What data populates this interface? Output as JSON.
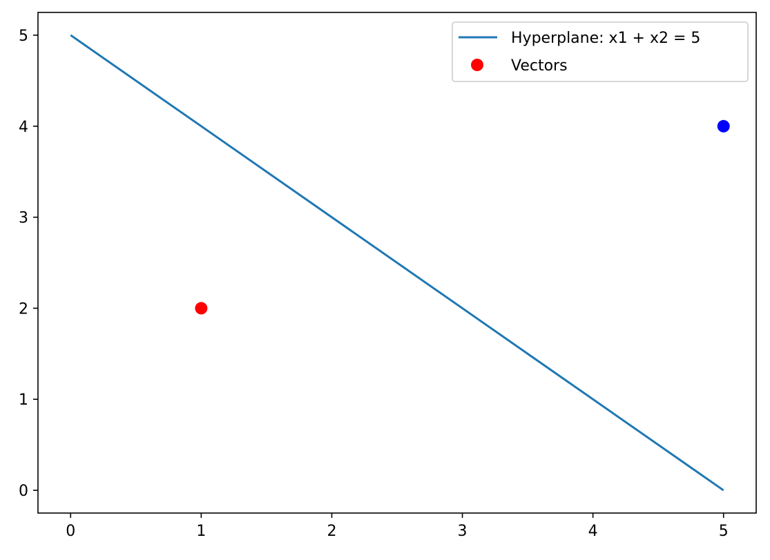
{
  "chart_data": {
    "type": "line",
    "title": "",
    "xlabel": "",
    "ylabel": "",
    "xlim": [
      -0.25,
      5.25
    ],
    "ylim": [
      -0.25,
      5.25
    ],
    "grid": false,
    "legend_position": "upper right",
    "x_ticks": [
      0,
      1,
      2,
      3,
      4,
      5
    ],
    "y_ticks": [
      0,
      1,
      2,
      3,
      4,
      5
    ],
    "x_tick_labels": [
      "0",
      "1",
      "2",
      "3",
      "4",
      "5"
    ],
    "y_tick_labels": [
      "0",
      "1",
      "2",
      "3",
      "4",
      "5"
    ],
    "series": [
      {
        "name": "Hyperplane: x1 + x2 = 5",
        "kind": "line",
        "color": "#1f77b4",
        "x": [
          0,
          5
        ],
        "y": [
          5,
          0
        ]
      },
      {
        "name": "Vectors",
        "kind": "scatter",
        "points": [
          {
            "x": 1,
            "y": 2,
            "color": "#ff0000"
          },
          {
            "x": 5,
            "y": 4,
            "color": "#0000ff"
          }
        ]
      }
    ]
  }
}
